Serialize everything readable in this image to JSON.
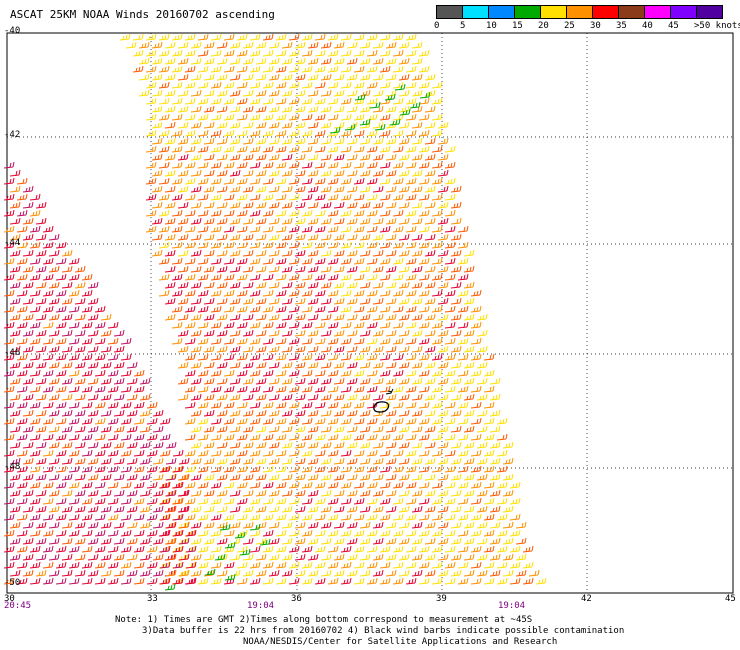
{
  "title": "ASCAT 25KM NOAA Winds 20160702 ascending",
  "colorbar": {
    "colors": [
      "#555555",
      "#00e0ff",
      "#0088ff",
      "#00aa00",
      "#ffe000",
      "#ff9000",
      "#ff0000",
      "#8b3a1a",
      "#ff00ff",
      "#8000ff",
      "#5000a0"
    ],
    "labels": [
      "0",
      "5",
      "10",
      "15",
      "20",
      "25",
      "30",
      "35",
      "40",
      "45",
      ">50 knots"
    ]
  },
  "axes": {
    "lon_labels": [
      "30",
      "33",
      "36",
      "39",
      "42",
      "45"
    ],
    "lat_labels": [
      "-40",
      "-42",
      "-44",
      "-46",
      "-48",
      "-50"
    ]
  },
  "times": {
    "left": "20:45",
    "mid": "19:04",
    "right": "19:04"
  },
  "note": {
    "line1": "Note: 1) Times are GMT 2)Times along bottom correspond to measurement at ~45S",
    "line2": "3)Data buffer is 22 hrs from 20160702 4) Black wind barbs indicate possible contamination",
    "line3": "NOAA/NESDIS/Center for Satellite Applications and Research"
  },
  "wind_colors": [
    "#ffe000",
    "#ff9000",
    "#ff5a00",
    "#e60030",
    "#c01060",
    "#00aa00"
  ]
}
